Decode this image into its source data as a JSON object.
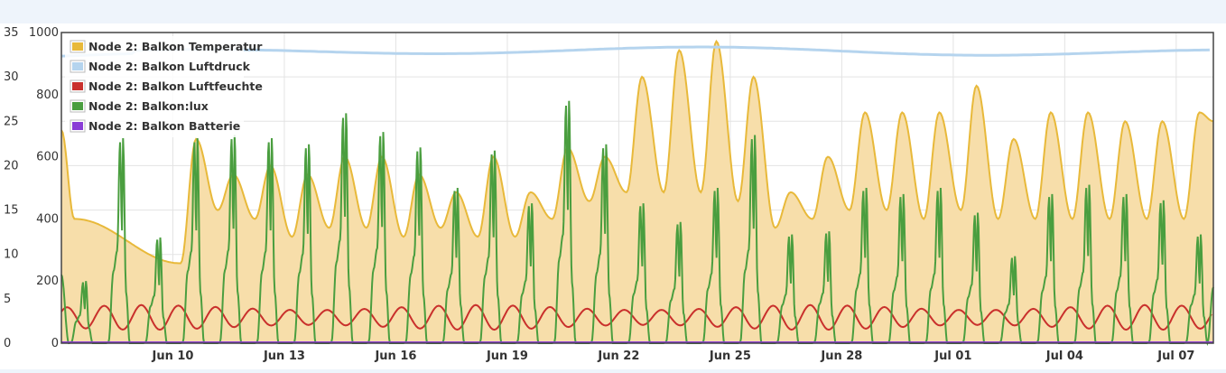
{
  "chart_data": {
    "type": "line",
    "title": "",
    "xlabel": "",
    "ylabel": "",
    "x_range": [
      "2016-06-07",
      "2016-07-08"
    ],
    "x_ticks": [
      "Jun 10",
      "Jun 13",
      "Jun 16",
      "Jun 19",
      "Jun 22",
      "Jun 25",
      "Jun 28",
      "Jul 01",
      "Jul 04",
      "Jul 07"
    ],
    "y_left": {
      "ylim": [
        0,
        35
      ],
      "ticks": [
        "0",
        "5",
        "10",
        "15",
        "20",
        "25",
        "30",
        "35"
      ]
    },
    "y_right": {
      "ylim": [
        0,
        1000
      ],
      "ticks": [
        "0",
        "200",
        "400",
        "600",
        "800",
        "1000"
      ]
    },
    "grid": true,
    "legend_position": "top-left",
    "series": [
      {
        "name": "Node 2: Balkon Temperatur",
        "axis": "left",
        "color": "#e8b93a",
        "fill": "#f7deaa",
        "style": "area",
        "peak_days": [
          "2016-06-10",
          "2016-06-11",
          "2016-06-12",
          "2016-06-13",
          "2016-06-14",
          "2016-06-15",
          "2016-06-16",
          "2016-06-17",
          "2016-06-18",
          "2016-06-19",
          "2016-06-20",
          "2016-06-21",
          "2016-06-22",
          "2016-06-23",
          "2016-06-24",
          "2016-06-25",
          "2016-06-26",
          "2016-06-27",
          "2016-06-28",
          "2016-06-29",
          "2016-06-30",
          "2016-07-01",
          "2016-07-02",
          "2016-07-03",
          "2016-07-04",
          "2016-07-05",
          "2016-07-06",
          "2016-07-07"
        ],
        "daily_max": [
          23,
          19,
          20,
          19,
          21,
          21,
          19,
          17,
          21,
          17,
          22,
          21,
          30,
          33,
          34,
          30,
          17,
          21,
          26,
          26,
          26,
          29,
          23,
          26,
          26,
          25,
          25,
          26
        ],
        "daily_min": [
          9,
          15,
          14,
          12,
          13,
          13,
          12,
          13,
          12,
          12,
          14,
          16,
          17,
          17,
          17,
          16,
          13,
          14,
          15,
          15,
          14,
          15,
          14,
          14,
          14,
          14,
          14,
          14
        ]
      },
      {
        "name": "Node 2: Balkon Luftdruck",
        "axis": "right",
        "color": "#b5d4ee",
        "style": "line",
        "level": 935
      },
      {
        "name": "Node 2: Balkon Luftfeuchte",
        "axis": "left",
        "color": "#c9302c",
        "style": "line",
        "range": [
          1.5,
          4.3
        ]
      },
      {
        "name": "Node 2: Balkon:lux",
        "axis": "right",
        "color": "#4a9e3f",
        "style": "line",
        "peak_days": [
          "2016-06-07",
          "2016-06-08",
          "2016-06-09",
          "2016-06-10",
          "2016-06-11",
          "2016-06-12",
          "2016-06-13",
          "2016-06-14",
          "2016-06-15",
          "2016-06-16",
          "2016-06-17",
          "2016-06-18",
          "2016-06-19",
          "2016-06-20",
          "2016-06-21",
          "2016-06-22",
          "2016-06-23",
          "2016-06-24",
          "2016-06-25",
          "2016-06-26",
          "2016-06-27",
          "2016-06-28",
          "2016-06-29",
          "2016-06-30",
          "2016-07-01",
          "2016-07-02",
          "2016-07-03",
          "2016-07-04",
          "2016-07-05",
          "2016-07-06",
          "2016-07-07"
        ],
        "daily_max": [
          200,
          660,
          340,
          660,
          670,
          660,
          640,
          740,
          680,
          630,
          500,
          620,
          450,
          780,
          640,
          450,
          390,
          500,
          670,
          350,
          360,
          500,
          480,
          500,
          420,
          280,
          480,
          510,
          480,
          460,
          350
        ]
      },
      {
        "name": "Node 2: Balkon Batterie",
        "axis": "left",
        "color": "#8a3dd6",
        "style": "line",
        "level": 0.1
      }
    ]
  }
}
